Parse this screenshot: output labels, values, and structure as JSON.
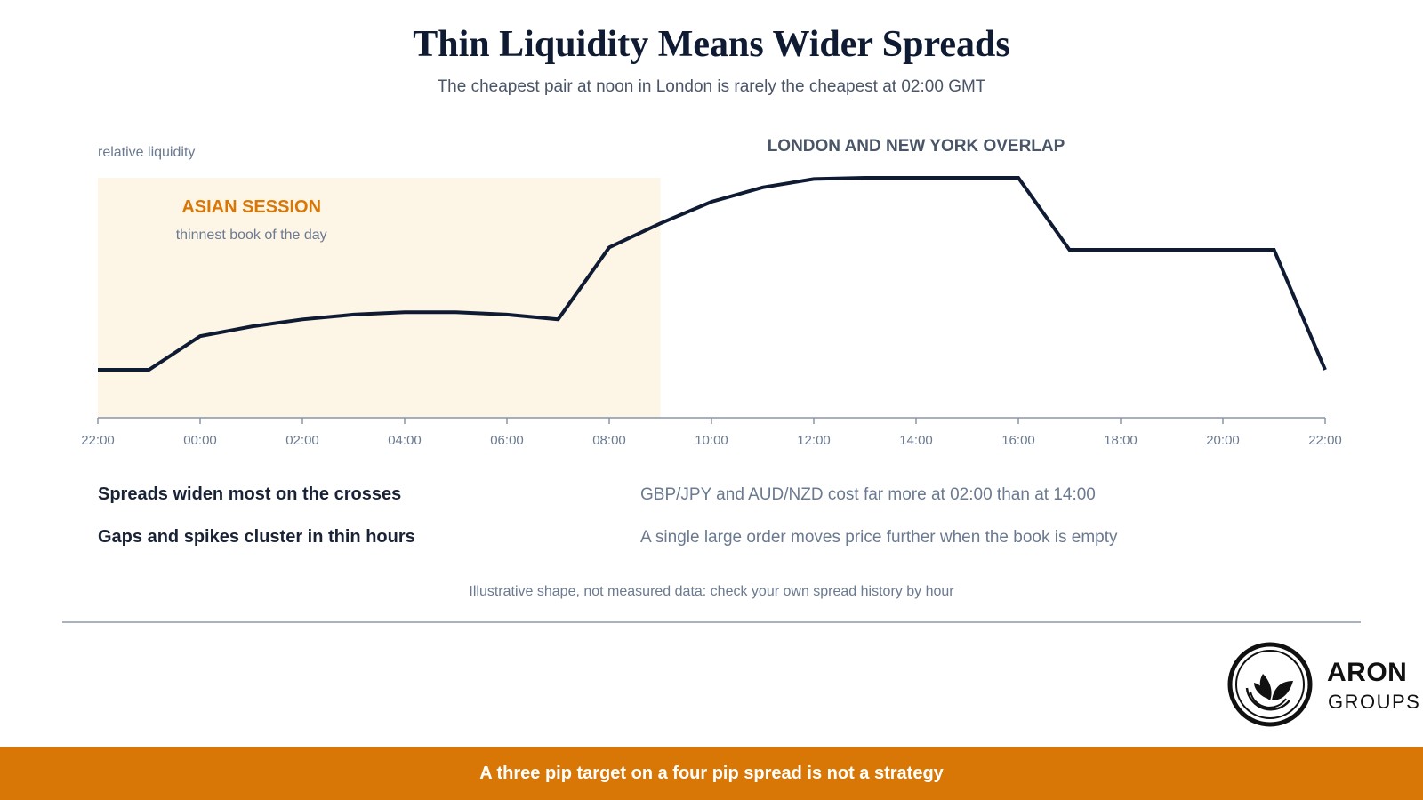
{
  "title": "Thin Liquidity Means Wider Spreads",
  "subtitle": "The cheapest pair at noon in London is rarely the cheapest at 02:00 GMT",
  "chart_data": {
    "type": "line",
    "ylabel": "relative liquidity",
    "x_ticks": [
      "22:00",
      "00:00",
      "02:00",
      "04:00",
      "06:00",
      "08:00",
      "10:00",
      "12:00",
      "14:00",
      "16:00",
      "18:00",
      "20:00",
      "22:00"
    ],
    "x_hours_range": [
      -2,
      22
    ],
    "ylim": [
      0,
      100
    ],
    "grid": false,
    "series": [
      {
        "x": [
          -2,
          -1,
          0,
          1,
          2,
          3,
          4,
          5,
          6,
          7,
          8,
          9,
          10,
          11,
          12,
          13,
          14,
          15,
          16,
          17,
          18,
          19,
          20,
          21,
          22
        ],
        "y": [
          20,
          20,
          34,
          38,
          41,
          43,
          44,
          44,
          43,
          41,
          71,
          81,
          90,
          96,
          99.5,
          100,
          100,
          100,
          100,
          70,
          70,
          70,
          70,
          70,
          20
        ]
      }
    ],
    "shaded_regions": [
      {
        "x_start": -2,
        "x_end": 9,
        "label": "ASIAN SESSION",
        "sublabel": "thinnest book of the day",
        "color": "#fdf5e6",
        "label_color": "#d97706"
      }
    ],
    "annotations": [
      {
        "text": "LONDON AND NEW YORK OVERLAP",
        "x_center": 14
      }
    ],
    "line_color": "#0f1b33",
    "axis_color": "#8a95a5"
  },
  "rows": [
    {
      "label": "Spreads widen most on the crosses",
      "text": "GBP/JPY and AUD/NZD cost far more at 02:00 than at 14:00"
    },
    {
      "label": "Gaps and spikes cluster in thin hours",
      "text": "A single large order moves price further when the book is empty"
    }
  ],
  "note": "Illustrative shape, not measured data: check your own spread history by hour",
  "logo": {
    "line1": "ARON",
    "line2": "GROUPS"
  },
  "footer": "A three pip target on a four pip spread is not a strategy"
}
